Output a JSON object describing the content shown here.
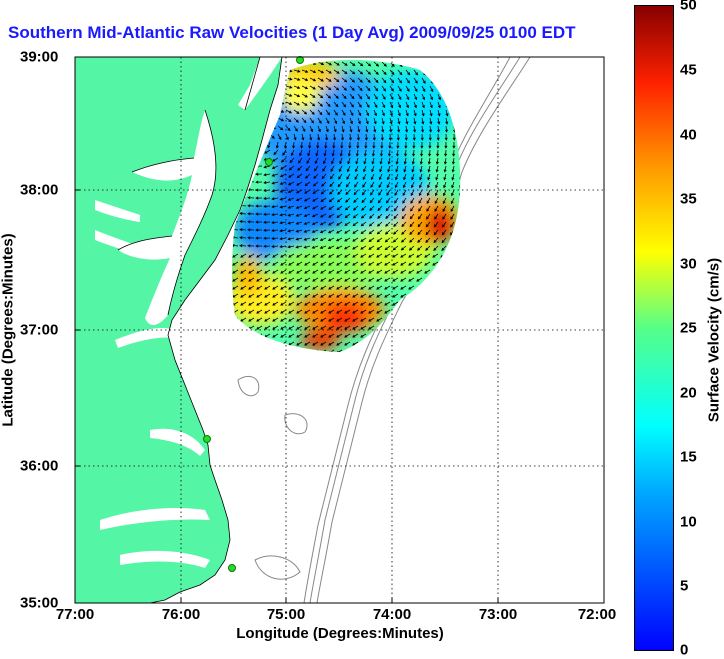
{
  "title": "Southern Mid-Atlantic Raw Velocities (1 Day Avg) 2009/09/25 0100 EDT",
  "x_axis": {
    "label": "Longitude (Degrees:Minutes)",
    "ticks": [
      "77:00",
      "76:00",
      "75:00",
      "74:00",
      "73:00",
      "72:00"
    ]
  },
  "y_axis": {
    "label": "Latitude (Degrees:Minutes)",
    "ticks": [
      "39:00",
      "38:00",
      "37:00",
      "36:00",
      "35:00"
    ]
  },
  "colorbar": {
    "label": "Surface Velocity (cm/s)",
    "ticks": [
      "50",
      "45",
      "40",
      "35",
      "30",
      "25",
      "20",
      "15",
      "10",
      "5",
      "0"
    ],
    "range": [
      0,
      50
    ],
    "colormap": "jet"
  },
  "colors": {
    "land": "#55f5a6",
    "title": "#1a1aff",
    "station": "#22dd22",
    "isobath": "#888888",
    "grid": "#000000"
  },
  "map": {
    "lon_range": [
      -77,
      -72
    ],
    "lat_range": [
      35,
      39
    ],
    "grid": "dotted",
    "stations": [
      {
        "lon": -75.12,
        "lat": 38.98
      },
      {
        "lon": -75.16,
        "lat": 38.22
      },
      {
        "lon": -75.75,
        "lat": 36.18
      },
      {
        "lon": -75.53,
        "lat": 35.25
      }
    ]
  }
}
